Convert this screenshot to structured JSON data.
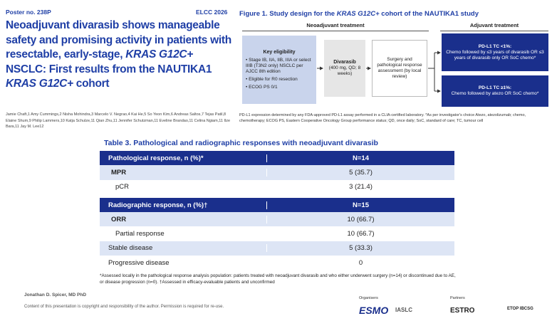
{
  "header": {
    "poster_no": "Poster no. 238P",
    "meeting": "ELCC 2026",
    "title_parts": [
      {
        "text": "Neoadjuvant divarasib shows manageable safety and promising activity in patients with resectable, early-stage, ",
        "italic": false
      },
      {
        "text": "KRAS G12C+",
        "italic": true
      },
      {
        "text": " NSCLC: First results from the NAUTIKA1 ",
        "italic": false
      },
      {
        "text": "KRAS G12C+",
        "italic": true
      },
      {
        "text": " cohort",
        "italic": false
      }
    ],
    "authors": "Jamie Chaft,1 Amy Cummings,2 Nisha Mohindra,3 Marcelo V. Negrao,4 Kai He,5 So Yeon Kim,6 Andreas Saltos,7 Tejas Patil,8 Elaine Shum,9 Philip Lammers,10 Katja Schulze,11 Qian Zhu,11 Jennifer Schutzman,11 Eveline Brandao,11 Celina Ngiam,11 Ilze Bara,11 Jay M. Lee12"
  },
  "figure": {
    "title_parts": [
      {
        "text": "Figure 1. Study design for the ",
        "italic": false
      },
      {
        "text": "KRAS G12C+",
        "italic": true
      },
      {
        "text": " cohort of the NAUTIKA1 study",
        "italic": false
      }
    ],
    "neoadjuvant_header": "Neoadjuvant treatment",
    "adjuvant_header": "Adjuvant treatment",
    "eligibility": {
      "title": "Key eligibility",
      "items": [
        "Stage IB, IIA, IIB, IIIA or select IIIB (T3N2 only) NSCLC per AJCC 8th edition",
        "Eligible for R0 resection",
        "ECOG PS 0/1"
      ]
    },
    "drug": {
      "name": "Divarasib",
      "dose": "(400 mg, QD; 8 weeks)"
    },
    "surgery": "Surgery and pathological response assessment (by local review)",
    "adjuvant": [
      {
        "title": "PD-L1 TC <1%:",
        "text": "Chemo followed by ≤3 years of divarasib OR ≤3 years of divarasib only OR SoC chemo*"
      },
      {
        "title": "PD-L1 TC ≥1%:",
        "text": "Chemo followed by atezo OR SoC chemo*"
      }
    ],
    "footnote": "PD-L1 expression determined by any FDA-approved PD-L1 assay performed in a CLIA-certified laboratory. *As per investigator's choice Atezo, atezolizumab; chemo, chemotherapy; ECOG PS, Eastern Cooperative Oncology Group performance status; QD, once daily; SoC, standard of care; TC, tumour cell"
  },
  "table": {
    "title": "Table 3. Pathological and radiographic responses with neoadjuvant divarasib",
    "rows": [
      {
        "kind": "header",
        "label": "Pathological response, n (%)*",
        "value": "N=14"
      },
      {
        "kind": "main",
        "label": "MPR",
        "value": "5 (35.7)"
      },
      {
        "kind": "sub",
        "label": "pCR",
        "value": "3 (21.4)"
      },
      {
        "kind": "header",
        "label": "Radiographic response, n (%)†",
        "value": "N=15"
      },
      {
        "kind": "main",
        "label": "ORR",
        "value": "10 (66.7)"
      },
      {
        "kind": "sub",
        "label": "Partial response",
        "value": "10 (66.7)"
      },
      {
        "kind": "plain",
        "label": "Stable disease",
        "value": "5 (33.3)"
      },
      {
        "kind": "plain",
        "label": "Progressive disease",
        "value": "0"
      }
    ],
    "footnote": "*Assessed locally in the pathological response analysis population: patients treated with neoadjuvant divarasib and who either underwent surgery (n=14) or discontinued due to AE, or disease progression (n=0). †Assessed in efficacy-evaluable patients and unconfirmed"
  },
  "footer": {
    "presenter": "Jonathan D. Spicer, MD PhD",
    "copyright": "Content of this presentation is copyright and responsibility of the author. Permission is required for re-use.",
    "organisers_label": "Organisers",
    "partners_label": "Partners",
    "organisers": [
      "ESMO",
      "IASLC"
    ],
    "partners": [
      "ESTRO",
      "ETOP IBCSG"
    ]
  }
}
